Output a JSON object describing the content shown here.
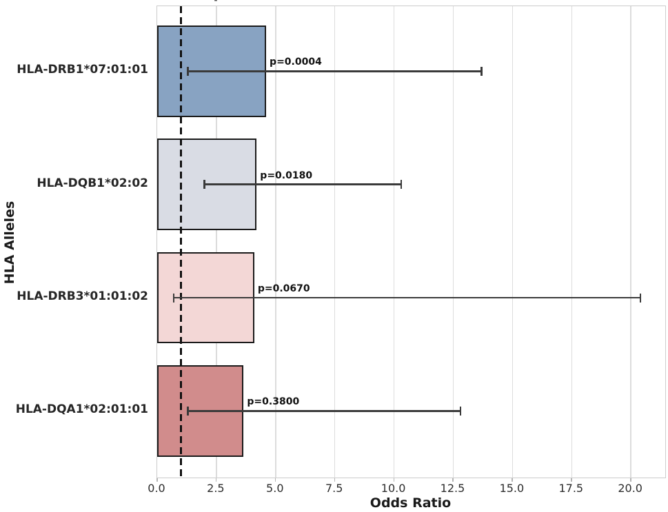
{
  "chart_data": {
    "type": "bar",
    "orientation": "horizontal",
    "title": "-",
    "xlabel": "Odds Ratio",
    "ylabel": "HLA Alleles",
    "categories": [
      "HLA-DRB1*07:01:01",
      "HLA-DQB1*02:02",
      "HLA-DRB3*01:01:02",
      "HLA-DQA1*02:01:01"
    ],
    "values": [
      4.6,
      4.2,
      4.1,
      3.65
    ],
    "ci_low": [
      1.3,
      2.0,
      0.7,
      1.3
    ],
    "ci_high": [
      13.7,
      10.3,
      20.4,
      12.8
    ],
    "p_labels": [
      "p=0.0004",
      "p=0.0180",
      "p=0.0670",
      "p=0.3800"
    ],
    "bar_colors": [
      "#88a3c2",
      "#d9dce4",
      "#f3d7d6",
      "#d18c8c"
    ],
    "bar_edge_color": "#1a1a1a",
    "error_bar_color": "#3a3a3a",
    "reference_line": {
      "x": 1.0,
      "style": "dashed",
      "color": "#111111"
    },
    "x_ticks": [
      0,
      2.5,
      5,
      7.5,
      10,
      12.5,
      15,
      17.5,
      20
    ],
    "x_tick_labels": [
      "0.0",
      "2.5",
      "5.0",
      "7.5",
      "10.0",
      "12.5",
      "15.0",
      "17.5",
      "20.0"
    ],
    "xlim": [
      0,
      21.45
    ],
    "grid": true,
    "grid_color": "#dcdcdc",
    "legend": "none"
  }
}
